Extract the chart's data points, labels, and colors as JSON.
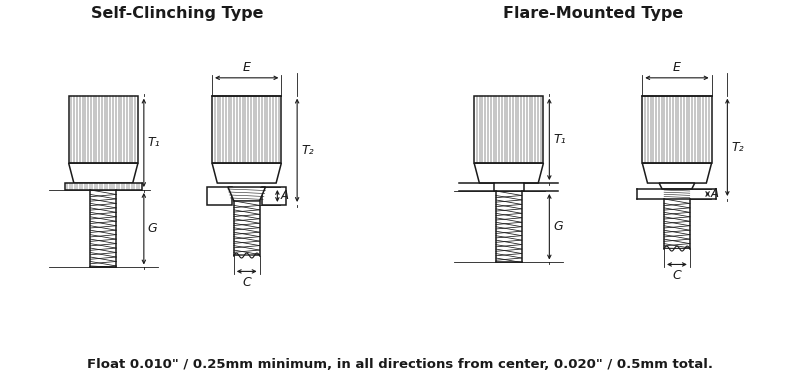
{
  "title_left": "Self-Clinching Type",
  "title_right": "Flare-Mounted Type",
  "footer": "Float 0.010\" / 0.25mm minimum, in all directions from center, 0.020\" / 0.5mm total.",
  "bg_color": "#ffffff",
  "line_color": "#1a1a1a",
  "title_fontsize": 11.5,
  "footer_fontsize": 9.5,
  "label_fontsize": 9
}
